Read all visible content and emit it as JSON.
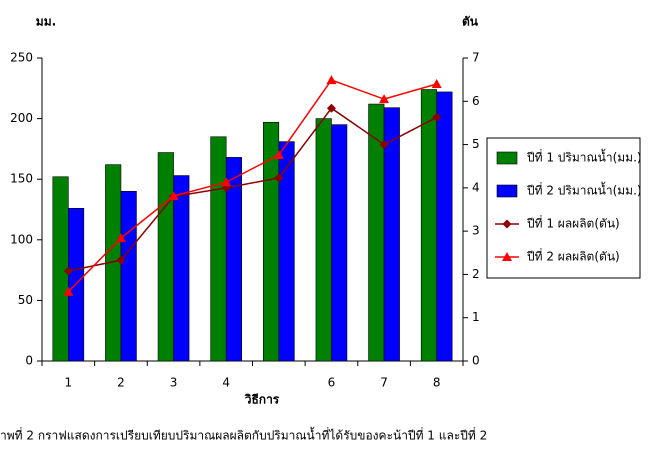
{
  "chart_data": {
    "type": "bar",
    "y_unit_label": "มม.",
    "y2_unit_label": "ตัน",
    "x_label": "วิธีการ",
    "caption": "าพที่ 2  กราฟแสดงการเปรียบเทียบปริมาณผลผลิตกับปริมาณน้ำที่ได้รับของคะน้าปีที่ 1  และปีที่ 2",
    "categories": [
      "1",
      "2",
      "3",
      "4",
      null,
      "6",
      "7",
      "8"
    ],
    "series": [
      {
        "name": "ปีที่ 1 ปริมาณน้ำ(มม.)",
        "type": "bar",
        "color": "#008000",
        "values": [
          152,
          162,
          172,
          185,
          197,
          200,
          212,
          224
        ]
      },
      {
        "name": "ปีที่ 2 ปริมาณน้ำ(มม.)",
        "type": "bar",
        "color": "#0000ff",
        "values": [
          126,
          140,
          153,
          168,
          181,
          195,
          209,
          222
        ]
      },
      {
        "name": "ปีที่ 1 ผลผลิต(ตัน)",
        "type": "line",
        "marker": "diamond",
        "axis": "y2",
        "color": "#8b0000",
        "values": [
          2.08,
          2.33,
          3.8,
          4.0,
          4.23,
          5.84,
          5.0,
          5.63
        ]
      },
      {
        "name": "ปีที่ 2 ผลผลิต(ตัน)",
        "type": "line",
        "marker": "triangle",
        "axis": "y2",
        "color": "#ff0000",
        "values": [
          1.6,
          2.84,
          3.81,
          4.13,
          4.76,
          6.49,
          6.05,
          6.4
        ]
      }
    ],
    "ylim": [
      0,
      250
    ],
    "yticks": [
      0,
      50,
      100,
      150,
      200,
      250
    ],
    "y2lim": [
      0,
      7
    ],
    "y2ticks": [
      0,
      1,
      2,
      3,
      4,
      5,
      6,
      7
    ],
    "grid": false,
    "legend": "right"
  }
}
